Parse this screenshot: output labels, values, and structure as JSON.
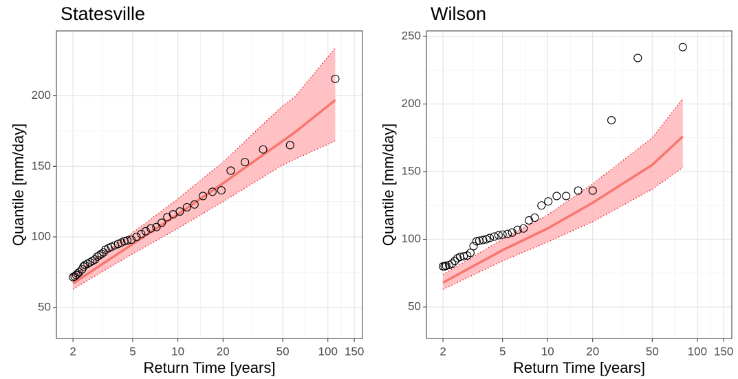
{
  "chart_data": [
    {
      "type": "scatter",
      "title": "Statesville",
      "x_label": "Return Time [years]",
      "y_label": "Quantile [mm/day]",
      "log_x": true,
      "grid": true,
      "xlim": [
        1.55,
        170
      ],
      "ylim": [
        28,
        246
      ],
      "xticks": [
        2,
        5,
        10,
        20,
        50,
        100,
        150
      ],
      "yticks": [
        50,
        100,
        150,
        200
      ],
      "points": {
        "color": "#000000",
        "x": [
          2.0,
          2.05,
          2.1,
          2.15,
          2.2,
          2.3,
          2.35,
          2.4,
          2.5,
          2.6,
          2.7,
          2.8,
          2.9,
          3.0,
          3.1,
          3.2,
          3.3,
          3.45,
          3.6,
          3.8,
          4.0,
          4.2,
          4.4,
          4.6,
          4.9,
          5.3,
          5.7,
          6.1,
          6.6,
          7.2,
          7.8,
          8.5,
          9.3,
          10.3,
          11.5,
          12.9,
          14.7,
          17,
          19.5,
          22.5,
          28,
          37,
          56,
          112
        ],
        "values": [
          71.5,
          72,
          73,
          74,
          75,
          77,
          79,
          80,
          81,
          82,
          83,
          84,
          86,
          87,
          88,
          89,
          91,
          92,
          93,
          94,
          95,
          96,
          97,
          97.5,
          98,
          100,
          102,
          104,
          106,
          107,
          110,
          114,
          116,
          118,
          121,
          123,
          129,
          132,
          133,
          147,
          153,
          162,
          165,
          212
        ]
      },
      "fit": {
        "color": "#f8766d",
        "band_color": "#ffb6ba",
        "bound_color": "#e8313b",
        "x": [
          2,
          5,
          10,
          20,
          50,
          60,
          112
        ],
        "values": [
          67,
          95,
          116,
          138,
          168,
          174,
          197
        ],
        "lower": [
          63,
          88,
          106,
          125,
          151,
          155,
          168
        ],
        "upper": [
          73,
          103,
          127,
          153,
          193,
          199,
          234
        ]
      }
    },
    {
      "type": "scatter",
      "title": "Wilson",
      "x_label": "Return Time [years]",
      "y_label": "Quantile [mm/day]",
      "log_x": true,
      "grid": true,
      "xlim": [
        1.55,
        170
      ],
      "ylim": [
        26.7,
        254
      ],
      "xticks": [
        2,
        5,
        10,
        20,
        50,
        100,
        150
      ],
      "yticks": [
        50,
        100,
        150,
        200,
        250
      ],
      "points": {
        "color": "#000000",
        "x": [
          2.0,
          2.05,
          2.1,
          2.2,
          2.3,
          2.4,
          2.5,
          2.6,
          2.75,
          2.9,
          3.05,
          3.2,
          3.35,
          3.5,
          3.7,
          3.9,
          4.1,
          4.4,
          4.7,
          5.0,
          5.4,
          5.8,
          6.3,
          6.9,
          7.5,
          8.2,
          9.1,
          10.1,
          11.5,
          13.3,
          16,
          20,
          26.7,
          40,
          80
        ],
        "values": [
          80,
          80,
          80.5,
          81,
          82,
          84,
          86,
          87,
          87.5,
          88,
          90,
          95,
          98.5,
          99,
          99.5,
          100,
          101,
          102,
          103,
          103.5,
          104,
          105,
          107,
          108,
          114,
          116,
          125,
          128,
          132,
          132,
          136,
          136,
          188,
          234,
          242
        ]
      },
      "fit": {
        "color": "#f8766d",
        "band_color": "#ffb6ba",
        "bound_color": "#e8313b",
        "x": [
          2,
          5,
          10,
          20,
          50,
          80
        ],
        "values": [
          68,
          92,
          108,
          127,
          155,
          176
        ],
        "lower": [
          63,
          84,
          98,
          113,
          137,
          153
        ],
        "upper": [
          74,
          100,
          118,
          141,
          175,
          204
        ]
      }
    }
  ]
}
